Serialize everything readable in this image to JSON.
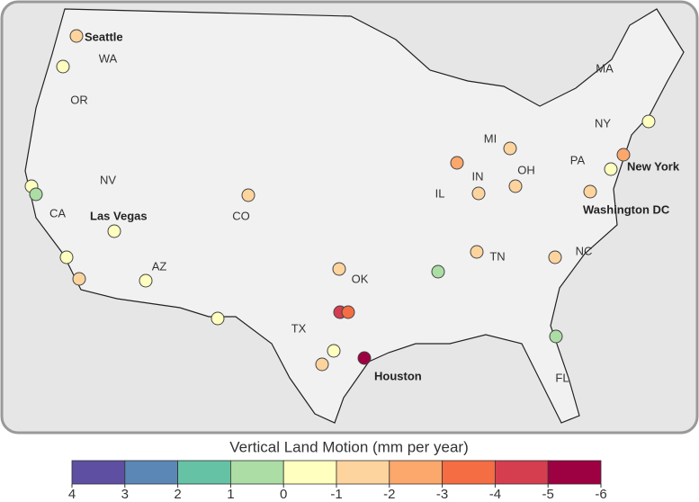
{
  "map": {
    "state_labels": [
      "WA",
      "OR",
      "CA",
      "NV",
      "AZ",
      "CO",
      "TX",
      "OK",
      "IL",
      "IN",
      "MI",
      "OH",
      "TN",
      "NC",
      "PA",
      "NY",
      "MA",
      "FL"
    ],
    "city_labels": [
      "Seattle",
      "Las Vegas",
      "Houston",
      "New York",
      "Washington DC"
    ],
    "points": [
      {
        "value": -1.5
      },
      {
        "value": -0.5
      },
      {
        "value": -0.5
      },
      {
        "value": 0.5
      },
      {
        "value": -0.5
      },
      {
        "value": -0.5
      },
      {
        "value": -1.5
      },
      {
        "value": -0.5
      },
      {
        "value": -0.5
      },
      {
        "value": -1.5
      },
      {
        "value": -1.5
      },
      {
        "value": -4.5
      },
      {
        "value": -3.5
      },
      {
        "value": -0.5
      },
      {
        "value": -1.5
      },
      {
        "value": -5.5
      },
      {
        "value": 0.5
      },
      {
        "value": -1.5
      },
      {
        "value": -1.5
      },
      {
        "value": 0.5
      },
      {
        "value": -2.5
      },
      {
        "value": -1.5
      },
      {
        "value": -1.5
      },
      {
        "value": -1.5
      },
      {
        "value": -1.5
      },
      {
        "value": -0.5
      },
      {
        "value": -2.5
      },
      {
        "value": -0.5
      }
    ],
    "legend": {
      "title": "Vertical Land Motion (mm per year)",
      "ticks": [
        4,
        3,
        2,
        1,
        0,
        -1,
        -2,
        -3,
        -4,
        -5,
        -6
      ],
      "colors": [
        "#5e4fa2",
        "#5b87b6",
        "#66c2a5",
        "#abdda4",
        "#ffffbf",
        "#fdd49e",
        "#fca76c",
        "#f46d43",
        "#d53e4f",
        "#9e0142"
      ]
    }
  }
}
